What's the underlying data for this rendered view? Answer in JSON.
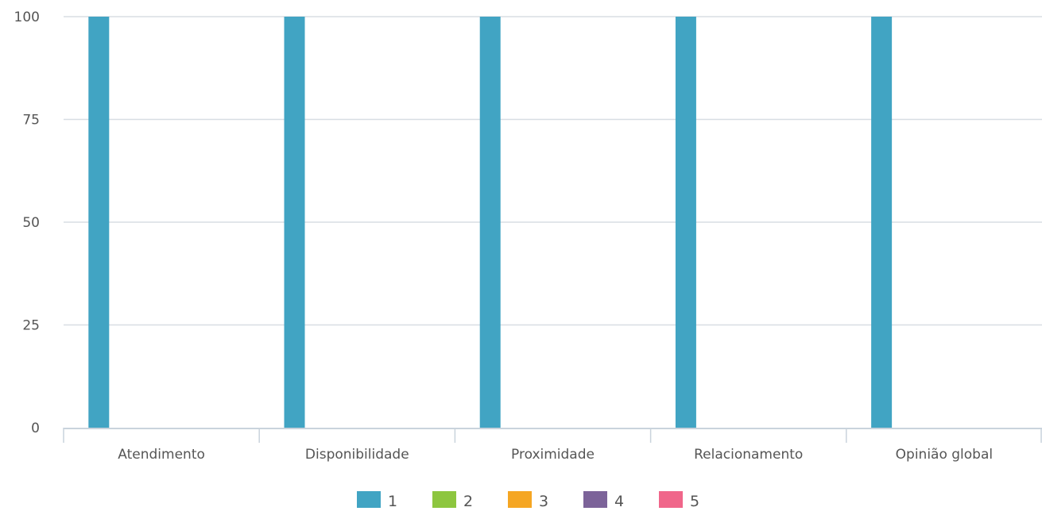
{
  "chart_data": {
    "type": "bar",
    "categories": [
      "Atendimento",
      "Disponibilidade",
      "Proximidade",
      "Relacionamento",
      "Opinião global"
    ],
    "series": [
      {
        "name": "1",
        "values": [
          100,
          100,
          100,
          100,
          100
        ],
        "color": "#41a4c3"
      },
      {
        "name": "2",
        "values": [
          0,
          0,
          0,
          0,
          0
        ],
        "color": "#8dc63f"
      },
      {
        "name": "3",
        "values": [
          0,
          0,
          0,
          0,
          0
        ],
        "color": "#f5a623"
      },
      {
        "name": "4",
        "values": [
          0,
          0,
          0,
          0,
          0
        ],
        "color": "#7c6399"
      },
      {
        "name": "5",
        "values": [
          0,
          0,
          0,
          0,
          0
        ],
        "color": "#f0668a"
      }
    ],
    "y_ticks": [
      0,
      25,
      50,
      75,
      100
    ],
    "ylim": [
      0,
      100
    ],
    "title": "",
    "xlabel": "",
    "ylabel": "",
    "grid": true,
    "legend_position": "bottom-center"
  },
  "colors": {
    "grid": "#d8dde3",
    "axis": "#c9d3dc",
    "label_text": "#555555",
    "legend_text": "#555555"
  }
}
